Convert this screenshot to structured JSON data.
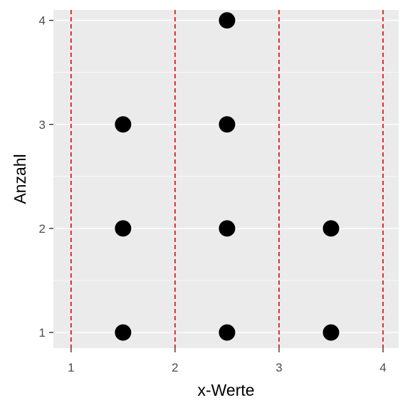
{
  "chart_data": {
    "type": "scatter",
    "title": "",
    "xlabel": "x-Werte",
    "ylabel": "Anzahl",
    "xlim": [
      0.83,
      4.15
    ],
    "ylim": [
      0.85,
      4.1
    ],
    "x_ticks": [
      1,
      2,
      3,
      4
    ],
    "y_ticks": [
      1,
      2,
      3,
      4
    ],
    "x_tick_labels": [
      "1",
      "2",
      "3",
      "4"
    ],
    "y_tick_labels": [
      "1",
      "2",
      "3",
      "4"
    ],
    "grid": true,
    "vlines": [
      1,
      2,
      3,
      4
    ],
    "series": [
      {
        "points": [
          {
            "x": 1.5,
            "y": 1
          },
          {
            "x": 1.5,
            "y": 2
          },
          {
            "x": 1.5,
            "y": 3
          },
          {
            "x": 2.5,
            "y": 1
          },
          {
            "x": 2.5,
            "y": 2
          },
          {
            "x": 2.5,
            "y": 3
          },
          {
            "x": 2.5,
            "y": 4
          },
          {
            "x": 3.5,
            "y": 1
          },
          {
            "x": 3.5,
            "y": 2
          }
        ]
      }
    ],
    "colors": {
      "panel": "#ebebeb",
      "grid": "#ffffff",
      "vline": "#e00000",
      "point": "#000000",
      "tick": "#333333"
    }
  }
}
